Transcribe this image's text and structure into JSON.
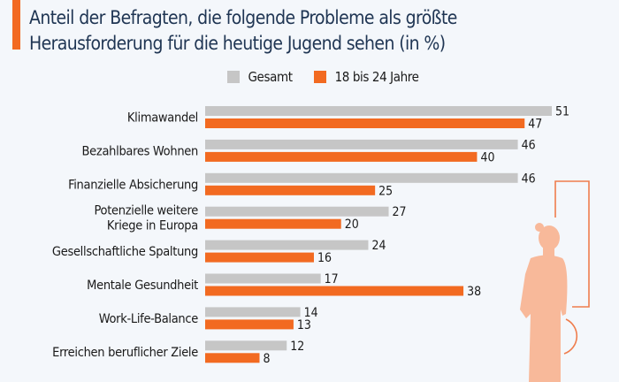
{
  "chart_data": {
    "type": "bar",
    "orientation": "horizontal",
    "title": "Anteil der Befragten, die folgende Probleme als größte Herausforderung für die heutige Jugend sehen (in %)",
    "categories": [
      [
        "Klimawandel"
      ],
      [
        "Bezahlbares Wohnen"
      ],
      [
        "Finanzielle Absicherung"
      ],
      [
        "Potenzielle weitere",
        "Kriege in Europa"
      ],
      [
        "Gesellschaftliche Spaltung"
      ],
      [
        "Mentale Gesundheit"
      ],
      [
        "Work-Life-Balance"
      ],
      [
        "Erreichen beruflicher Ziele"
      ]
    ],
    "series": [
      {
        "name": "Gesamt",
        "color": "#c6c6c6",
        "values": [
          51,
          46,
          46,
          27,
          24,
          17,
          14,
          12
        ]
      },
      {
        "name": "18 bis 24 Jahre",
        "color": "#f26a21",
        "values": [
          47,
          40,
          25,
          20,
          16,
          38,
          13,
          8
        ]
      }
    ],
    "legend": "top-center",
    "grid": false,
    "xlim": [
      0,
      51
    ]
  }
}
